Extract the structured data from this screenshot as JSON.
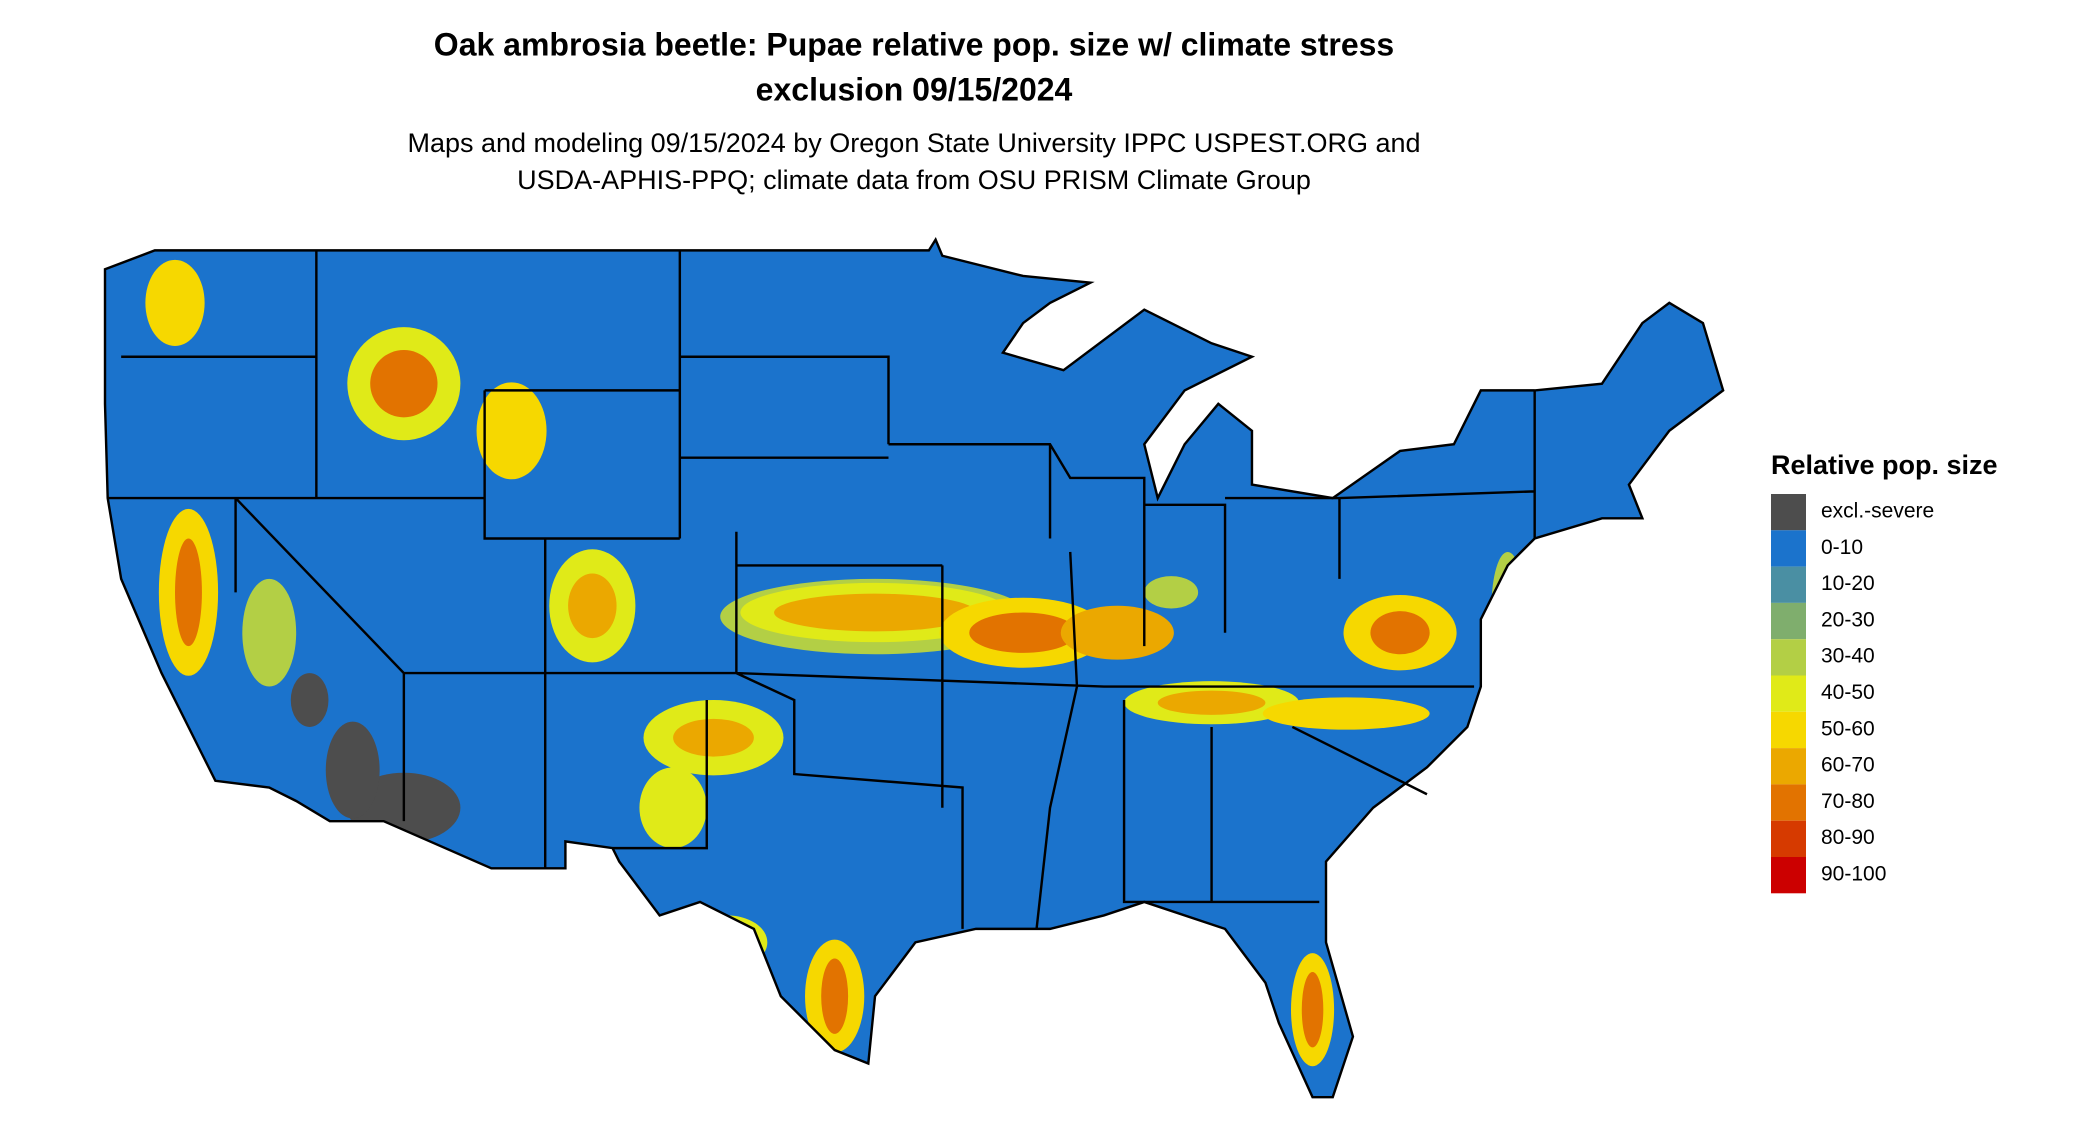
{
  "title_lines": [
    "Oak ambrosia beetle: Pupae relative pop. size w/ climate stress",
    "exclusion 09/15/2024"
  ],
  "subtitle_lines": [
    "Maps and modeling 09/15/2024 by Oregon State University IPPC USPEST.ORG and",
    "USDA-APHIS-PPQ; climate data from OSU PRISM Climate Group"
  ],
  "legend": {
    "title": "Relative pop. size",
    "entries": [
      {
        "label": "excl.-severe",
        "color": "#4d4d4d"
      },
      {
        "label": "0-10",
        "color": "#1b73cc"
      },
      {
        "label": "10-20",
        "color": "#4a8fa3"
      },
      {
        "label": "20-30",
        "color": "#7fae6d"
      },
      {
        "label": "30-40",
        "color": "#b3cf45"
      },
      {
        "label": "40-50",
        "color": "#e0ea18"
      },
      {
        "label": "50-60",
        "color": "#f6d800"
      },
      {
        "label": "60-70",
        "color": "#eba800"
      },
      {
        "label": "70-80",
        "color": "#e27300"
      },
      {
        "label": "80-90",
        "color": "#d63a00"
      },
      {
        "label": "90-100",
        "color": "#cc0000"
      }
    ]
  }
}
